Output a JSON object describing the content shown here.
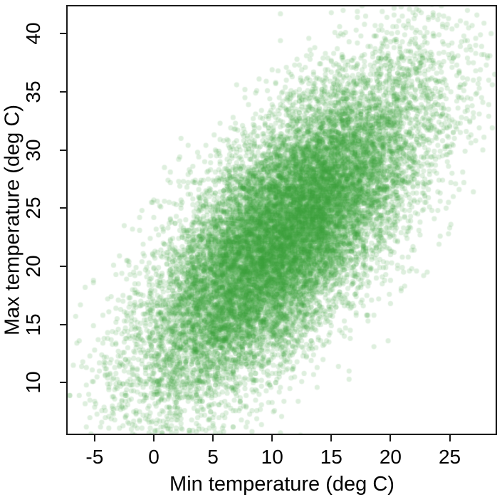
{
  "chart_data": {
    "type": "scatter",
    "title": "",
    "xlabel": "Min temperature (deg C)",
    "ylabel": "Max temperature (deg C)",
    "xlim": [
      -7.4,
      29.0
    ],
    "ylim": [
      5.5,
      42.4
    ],
    "x_ticks": [
      -5,
      0,
      5,
      10,
      15,
      20,
      25
    ],
    "y_ticks": [
      10,
      15,
      20,
      25,
      30,
      35,
      40
    ],
    "grid": false,
    "legend": "none",
    "background_color": "#ffffff",
    "axis_color": "#1a1a1a",
    "text_color": "#000000",
    "point_style": {
      "shape": "filled-circle",
      "color": "#3aa33a",
      "alpha": 0.17,
      "radius_px": 3.6
    },
    "points_summary": {
      "n_points": 17000,
      "x_mean": 11.0,
      "y_mean": 22.8,
      "x_sd": 5.9,
      "y_sd": 6.9,
      "correlation": 0.72,
      "value_step": 0.1,
      "clipped_to_plot_region": true
    }
  }
}
